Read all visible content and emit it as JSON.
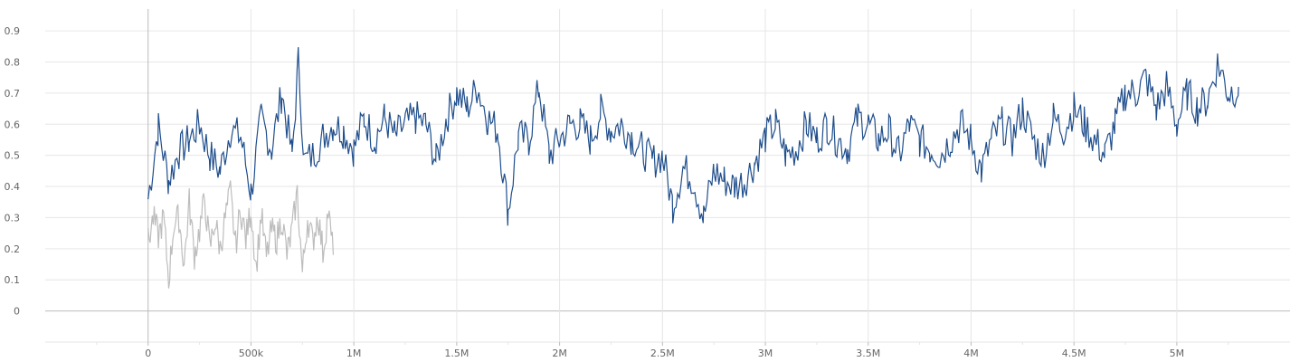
{
  "chart_data": {
    "type": "line",
    "title": "",
    "xlabel": "",
    "ylabel": "",
    "xlim": [
      -500000,
      5550000
    ],
    "ylim": [
      -0.1,
      0.97
    ],
    "grid": true,
    "x_ticks": [
      {
        "value": 0,
        "label": "0"
      },
      {
        "value": 500000,
        "label": "500k"
      },
      {
        "value": 1000000,
        "label": "1M"
      },
      {
        "value": 1500000,
        "label": "1.5M"
      },
      {
        "value": 2000000,
        "label": "2M"
      },
      {
        "value": 2500000,
        "label": "2.5M"
      },
      {
        "value": 3000000,
        "label": "3M"
      },
      {
        "value": 3500000,
        "label": "3.5M"
      },
      {
        "value": 4000000,
        "label": "4M"
      },
      {
        "value": 4500000,
        "label": "4.5M"
      },
      {
        "value": 5000000,
        "label": "5M"
      }
    ],
    "y_ticks": [
      {
        "value": 0,
        "label": "0"
      },
      {
        "value": 0.1,
        "label": "0.1"
      },
      {
        "value": 0.2,
        "label": "0.2"
      },
      {
        "value": 0.3,
        "label": "0.3"
      },
      {
        "value": 0.4,
        "label": "0.4"
      },
      {
        "value": 0.5,
        "label": "0.5"
      },
      {
        "value": 0.6,
        "label": "0.6"
      },
      {
        "value": 0.7,
        "label": "0.7"
      },
      {
        "value": 0.8,
        "label": "0.8"
      },
      {
        "value": 0.9,
        "label": "0.9"
      }
    ],
    "series": [
      {
        "color": "#1f4e8c",
        "x": [
          0,
          50000,
          100000,
          150000,
          200000,
          250000,
          300000,
          350000,
          400000,
          450000,
          500000,
          550000,
          600000,
          650000,
          700000,
          730000,
          760000,
          800000,
          850000,
          900000,
          950000,
          1000000,
          1050000,
          1100000,
          1150000,
          1200000,
          1250000,
          1300000,
          1350000,
          1400000,
          1450000,
          1500000,
          1550000,
          1600000,
          1650000,
          1700000,
          1750000,
          1800000,
          1850000,
          1900000,
          1950000,
          2000000,
          2050000,
          2100000,
          2150000,
          2200000,
          2250000,
          2300000,
          2350000,
          2400000,
          2450000,
          2500000,
          2550000,
          2600000,
          2650000,
          2700000,
          2750000,
          2800000,
          2850000,
          2900000,
          2950000,
          3000000,
          3050000,
          3100000,
          3150000,
          3200000,
          3250000,
          3300000,
          3350000,
          3400000,
          3450000,
          3500000,
          3550000,
          3600000,
          3650000,
          3700000,
          3750000,
          3800000,
          3850000,
          3900000,
          3950000,
          4000000,
          4050000,
          4100000,
          4150000,
          4200000,
          4250000,
          4300000,
          4350000,
          4400000,
          4450000,
          4500000,
          4550000,
          4600000,
          4650000,
          4700000,
          4750000,
          4800000,
          4850000,
          4900000,
          4950000,
          5000000,
          5050000,
          5100000,
          5150000,
          5200000,
          5250000,
          5300000
        ],
        "y": [
          0.36,
          0.59,
          0.42,
          0.51,
          0.55,
          0.6,
          0.5,
          0.45,
          0.58,
          0.56,
          0.38,
          0.62,
          0.52,
          0.7,
          0.5,
          0.8,
          0.48,
          0.5,
          0.56,
          0.6,
          0.58,
          0.52,
          0.62,
          0.55,
          0.62,
          0.56,
          0.6,
          0.62,
          0.6,
          0.48,
          0.62,
          0.7,
          0.65,
          0.72,
          0.62,
          0.58,
          0.32,
          0.56,
          0.55,
          0.72,
          0.5,
          0.55,
          0.6,
          0.6,
          0.55,
          0.64,
          0.58,
          0.6,
          0.56,
          0.52,
          0.48,
          0.5,
          0.34,
          0.46,
          0.42,
          0.3,
          0.45,
          0.42,
          0.4,
          0.42,
          0.48,
          0.56,
          0.6,
          0.5,
          0.52,
          0.6,
          0.55,
          0.6,
          0.55,
          0.52,
          0.62,
          0.6,
          0.55,
          0.58,
          0.5,
          0.6,
          0.55,
          0.52,
          0.5,
          0.55,
          0.6,
          0.55,
          0.45,
          0.55,
          0.6,
          0.55,
          0.65,
          0.55,
          0.5,
          0.62,
          0.58,
          0.65,
          0.6,
          0.55,
          0.5,
          0.6,
          0.7,
          0.7,
          0.75,
          0.65,
          0.72,
          0.6,
          0.7,
          0.65,
          0.68,
          0.8,
          0.7,
          0.72
        ]
      },
      {
        "color": "#bdbdbd",
        "x": [
          0,
          25000,
          50000,
          75000,
          100000,
          125000,
          150000,
          175000,
          200000,
          225000,
          250000,
          275000,
          300000,
          325000,
          350000,
          375000,
          400000,
          425000,
          450000,
          475000,
          500000,
          525000,
          550000,
          575000,
          600000,
          625000,
          650000,
          675000,
          700000,
          725000,
          750000,
          775000,
          800000,
          825000,
          850000,
          875000,
          900000
        ],
        "y": [
          0.22,
          0.3,
          0.24,
          0.3,
          0.1,
          0.28,
          0.3,
          0.15,
          0.35,
          0.18,
          0.26,
          0.36,
          0.2,
          0.29,
          0.2,
          0.3,
          0.38,
          0.21,
          0.33,
          0.23,
          0.33,
          0.14,
          0.31,
          0.17,
          0.26,
          0.23,
          0.3,
          0.18,
          0.26,
          0.38,
          0.12,
          0.3,
          0.22,
          0.31,
          0.19,
          0.32,
          0.18
        ]
      }
    ]
  }
}
